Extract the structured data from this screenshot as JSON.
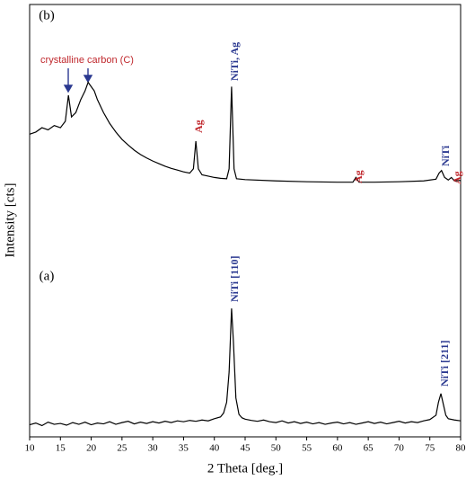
{
  "chart_data": {
    "type": "line",
    "xlabel": "2 Theta [deg.]",
    "ylabel": "Intensity [cts]",
    "xlim": [
      10,
      80
    ],
    "xticks": [
      10,
      15,
      20,
      25,
      30,
      35,
      40,
      45,
      50,
      55,
      60,
      65,
      70,
      75,
      80
    ],
    "ylim": [
      0,
      100
    ],
    "series": [
      {
        "name": "(b)",
        "color": "#000000",
        "x": [
          10,
          11,
          12,
          13,
          14,
          15,
          15.8,
          16.3,
          16.8,
          17.5,
          18.3,
          19,
          19.5,
          20,
          20.5,
          21,
          22,
          23,
          24,
          25,
          26,
          27,
          28,
          29,
          30,
          31,
          32,
          33,
          34,
          35,
          36,
          36.6,
          37,
          37.4,
          38,
          39,
          40,
          41,
          42,
          42.4,
          42.8,
          43.2,
          43.6,
          45,
          50,
          55,
          60,
          62.5,
          63,
          63.5,
          66,
          70,
          74,
          76,
          76.5,
          76.9,
          77.4,
          78,
          78.5,
          79,
          80
        ],
        "values": [
          70,
          70.5,
          71.5,
          71,
          72,
          71.5,
          73,
          79,
          74,
          75,
          78,
          80,
          82,
          81,
          80,
          78,
          75,
          72.5,
          70.5,
          68.8,
          67.5,
          66.3,
          65.3,
          64.5,
          63.8,
          63.2,
          62.6,
          62.1,
          61.7,
          61.3,
          61,
          62,
          68.4,
          62,
          60.6,
          60.3,
          60,
          59.8,
          59.7,
          62,
          81,
          62,
          59.7,
          59.5,
          59.2,
          59,
          58.9,
          58.9,
          60,
          58.9,
          58.9,
          59,
          59.2,
          59.6,
          61,
          61.6,
          60,
          59.4,
          60,
          59.2,
          59.3
        ]
      },
      {
        "name": "(a)",
        "color": "#000000",
        "x": [
          10,
          11,
          12,
          13,
          14,
          15,
          16,
          17,
          18,
          19,
          20,
          21,
          22,
          23,
          24,
          25,
          26,
          27,
          28,
          29,
          30,
          31,
          32,
          33,
          34,
          35,
          36,
          37,
          38,
          39,
          40,
          41,
          41.5,
          42,
          42.4,
          42.8,
          43.1,
          43.5,
          44,
          44.5,
          45,
          46,
          47,
          48,
          49,
          50,
          51,
          52,
          53,
          54,
          55,
          56,
          57,
          58,
          59,
          60,
          61,
          62,
          63,
          64,
          65,
          66,
          67,
          68,
          69,
          70,
          71,
          72,
          73,
          74,
          75,
          76,
          76.4,
          76.8,
          77.2,
          77.6,
          78,
          79,
          80
        ],
        "values": [
          2.8,
          3.2,
          2.6,
          3.4,
          2.9,
          3.1,
          2.7,
          3.3,
          2.9,
          3.4,
          2.8,
          3.2,
          3,
          3.5,
          2.9,
          3.3,
          3.6,
          3,
          3.4,
          3.1,
          3.5,
          3.2,
          3.6,
          3.3,
          3.7,
          3.5,
          3.8,
          3.6,
          3.9,
          3.7,
          4.2,
          4.6,
          5.5,
          8,
          15,
          29.7,
          22,
          9,
          5.2,
          4.4,
          4.1,
          3.8,
          3.6,
          3.9,
          3.5,
          3.3,
          3.7,
          3.2,
          3.5,
          3.1,
          3.4,
          3,
          3.3,
          2.9,
          3.2,
          3.4,
          3,
          3.3,
          2.9,
          3.2,
          3.5,
          3.1,
          3.4,
          3,
          3.3,
          3.6,
          3.2,
          3.5,
          3.3,
          3.7,
          4,
          5,
          8,
          10,
          7.5,
          5,
          4.2,
          3.9,
          3.7
        ]
      }
    ],
    "annotations": [
      {
        "text": "crystalline carbon (C)",
        "color": "#c0282d"
      },
      {
        "text": "Ag",
        "color": "#c0282d"
      },
      {
        "text": "NiTi, Ag",
        "color": "#2b3990"
      },
      {
        "text": "Ag",
        "color": "#c0282d"
      },
      {
        "text": "NiTi",
        "color": "#2b3990"
      },
      {
        "text": "Ag",
        "color": "#c0282d"
      },
      {
        "text": "NiTi [110]",
        "color": "#2b3990"
      },
      {
        "text": "NiTi [211]",
        "color": "#2b3990"
      }
    ]
  }
}
